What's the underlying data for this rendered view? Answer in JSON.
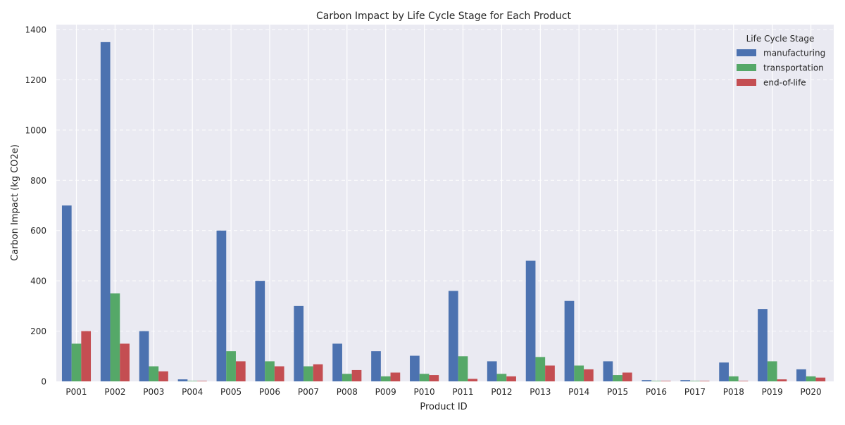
{
  "chart_data": {
    "type": "bar",
    "title": "Carbon Impact by Life Cycle Stage for Each Product",
    "xlabel": "Product ID",
    "ylabel": "Carbon Impact (kg CO2e)",
    "ylim": [
      0,
      1400
    ],
    "yticks": [
      0,
      200,
      400,
      600,
      800,
      1000,
      1200,
      1400
    ],
    "grid": true,
    "legend": {
      "title": "Life Cycle Stage",
      "placement": "top-right"
    },
    "categories": [
      "P001",
      "P002",
      "P003",
      "P004",
      "P005",
      "P006",
      "P007",
      "P008",
      "P009",
      "P010",
      "P011",
      "P012",
      "P013",
      "P014",
      "P015",
      "P016",
      "P017",
      "P018",
      "P019",
      "P020"
    ],
    "series": [
      {
        "name": "manufacturing",
        "color": "#4c72b0",
        "values": [
          700,
          1350,
          200,
          8,
          600,
          400,
          300,
          150,
          120,
          102,
          360,
          80,
          480,
          320,
          80,
          5,
          5,
          75,
          288,
          48
        ]
      },
      {
        "name": "transportation",
        "color": "#55a868",
        "values": [
          150,
          350,
          60,
          2,
          120,
          80,
          60,
          30,
          20,
          30,
          100,
          30,
          97,
          63,
          25,
          2,
          2,
          20,
          80,
          20
        ]
      },
      {
        "name": "end-of-life",
        "color": "#c44e52",
        "values": [
          200,
          150,
          40,
          2,
          80,
          60,
          68,
          45,
          35,
          25,
          10,
          20,
          63,
          48,
          35,
          2,
          2,
          2,
          8,
          15
        ]
      }
    ]
  }
}
